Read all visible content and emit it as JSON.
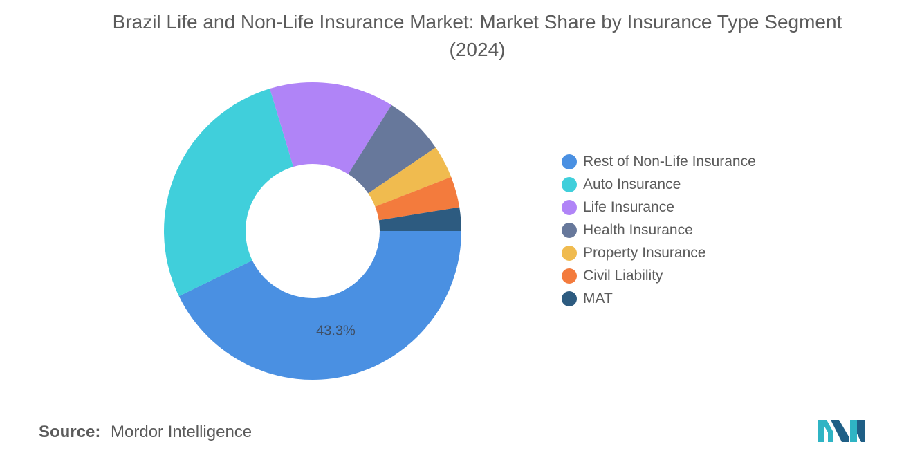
{
  "title": "Brazil Life and Non-Life Insurance Market: Market Share by Insurance Type Segment (2024)",
  "chart_data": {
    "type": "pie",
    "variant": "donut",
    "title": "Brazil Life and Non-Life Insurance Market: Market Share by Insurance Type Segment (2024)",
    "categories": [
      "Rest of Non-Life Insurance",
      "Auto Insurance",
      "Life Insurance",
      "Health Insurance",
      "Property Insurance",
      "Civil Liability",
      "MAT"
    ],
    "values": [
      43.3,
      27.9,
      13.7,
      6.7,
      3.6,
      3.4,
      2.6
    ],
    "colors": [
      "#4a90e2",
      "#40cfdb",
      "#b084f7",
      "#67789b",
      "#f0bb4f",
      "#f37b3d",
      "#2d5b80"
    ],
    "data_labels": [
      {
        "category": "Rest of Non-Life Insurance",
        "text": "43.3%"
      }
    ],
    "legend_position": "right"
  },
  "source": {
    "label": "Source:",
    "value": "Mordor Intelligence"
  }
}
